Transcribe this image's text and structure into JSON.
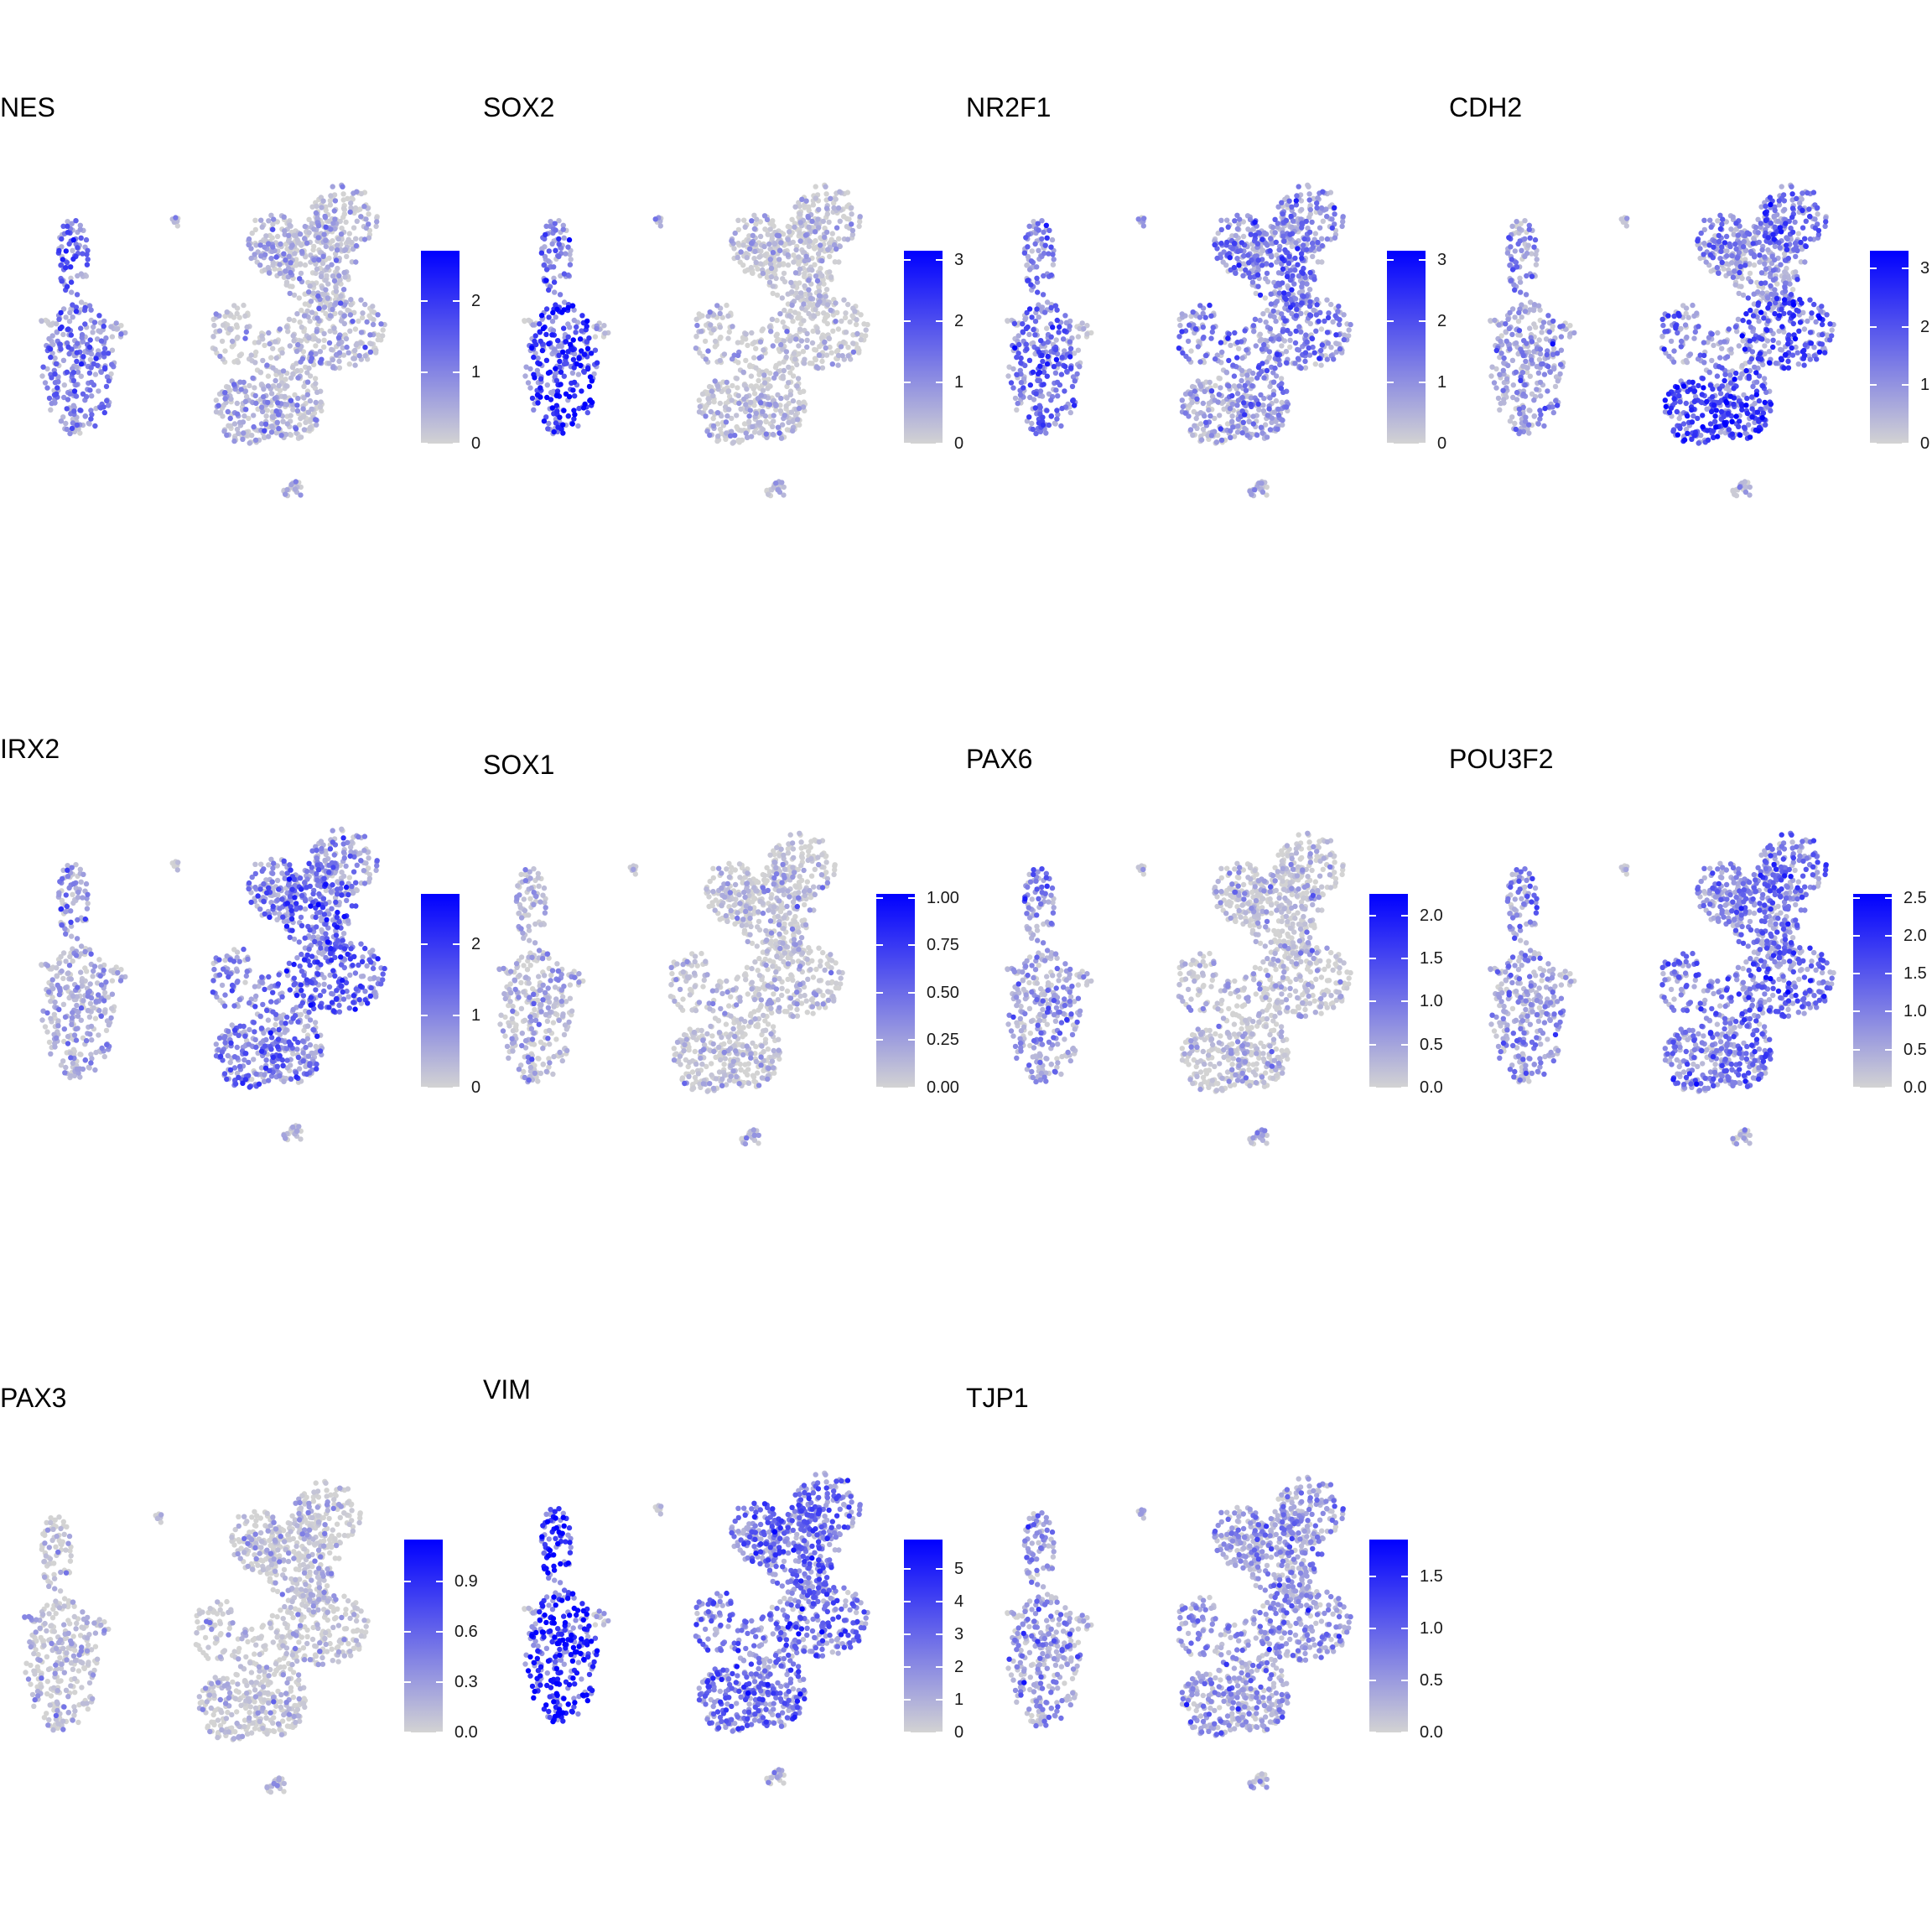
{
  "chart_data": {
    "type": "scatter",
    "layout": "4 columns x 3 rows of feature plots",
    "color_scale": {
      "low": "#d3d3d3",
      "high": "#0000ff"
    },
    "legend_placement": "right of each panel",
    "axes_visible": false,
    "grid": false,
    "panels": [
      {
        "title": "NES",
        "ticks": [
          "0",
          "1",
          "2"
        ],
        "max": 2.7,
        "pattern": [
          0.55,
          0.45,
          0.05,
          0.15,
          0.1,
          0.12,
          0.1,
          0.2,
          0.1,
          0.05
        ]
      },
      {
        "title": "SOX2",
        "ticks": [
          "0",
          "1",
          "2",
          "3"
        ],
        "max": 3.15,
        "pattern": [
          0.45,
          0.8,
          0.05,
          0.05,
          0.03,
          0.05,
          0.04,
          0.05,
          0.05,
          0.03
        ]
      },
      {
        "title": "NR2F1",
        "ticks": [
          "0",
          "1",
          "2",
          "3"
        ],
        "max": 3.15,
        "pattern": [
          0.5,
          0.5,
          0.4,
          0.45,
          0.45,
          0.35,
          0.4,
          0.25,
          0.3,
          0.4
        ]
      },
      {
        "title": "CDH2",
        "ticks": [
          "0",
          "1",
          "2",
          "3"
        ],
        "max": 3.3,
        "pattern": [
          0.35,
          0.3,
          0.3,
          0.35,
          0.3,
          0.55,
          0.65,
          0.7,
          0.7,
          0.35
        ]
      },
      {
        "title": "IRX2",
        "ticks": [
          "0",
          "1",
          "2"
        ],
        "max": 2.7,
        "pattern": [
          0.3,
          0.2,
          0.45,
          0.45,
          0.55,
          0.3,
          0.55,
          0.45,
          0.4,
          0.4
        ]
      },
      {
        "title": "SOX1",
        "ticks": [
          "0.00",
          "0.25",
          "0.50",
          "0.75",
          "1.00"
        ],
        "max": 1.02,
        "pattern": [
          0.15,
          0.12,
          0.05,
          0.03,
          0.05,
          0.03,
          0.03,
          0.02,
          0.02,
          0.02
        ]
      },
      {
        "title": "PAX6",
        "ticks": [
          "0.0",
          "0.5",
          "1.0",
          "1.5",
          "2.0"
        ],
        "max": 2.25,
        "pattern": [
          0.35,
          0.3,
          0.06,
          0.06,
          0.06,
          0.05,
          0.05,
          0.05,
          0.05,
          0.05
        ]
      },
      {
        "title": "POU3F2",
        "ticks": [
          "0.0",
          "0.5",
          "1.0",
          "1.5",
          "2.0",
          "2.5"
        ],
        "max": 2.55,
        "pattern": [
          0.35,
          0.3,
          0.45,
          0.4,
          0.45,
          0.5,
          0.55,
          0.45,
          0.45,
          0.45
        ]
      },
      {
        "title": "PAX3",
        "ticks": [
          "0.0",
          "0.3",
          "0.6",
          "0.9"
        ],
        "max": 1.15,
        "pattern": [
          0.02,
          0.04,
          0.02,
          0.02,
          0.02,
          0.02,
          0.02,
          0.02,
          0.02,
          0.02
        ]
      },
      {
        "title": "VIM",
        "ticks": [
          "0",
          "1",
          "2",
          "3",
          "4",
          "5"
        ],
        "max": 5.9,
        "pattern": [
          0.92,
          0.9,
          0.5,
          0.55,
          0.55,
          0.55,
          0.5,
          0.5,
          0.5,
          0.5
        ]
      },
      {
        "title": "TJP1",
        "ticks": [
          "0.0",
          "0.5",
          "1.0",
          "1.5"
        ],
        "max": 1.85,
        "pattern": [
          0.35,
          0.3,
          0.3,
          0.3,
          0.28,
          0.3,
          0.3,
          0.25,
          0.25,
          0.35
        ]
      }
    ]
  }
}
